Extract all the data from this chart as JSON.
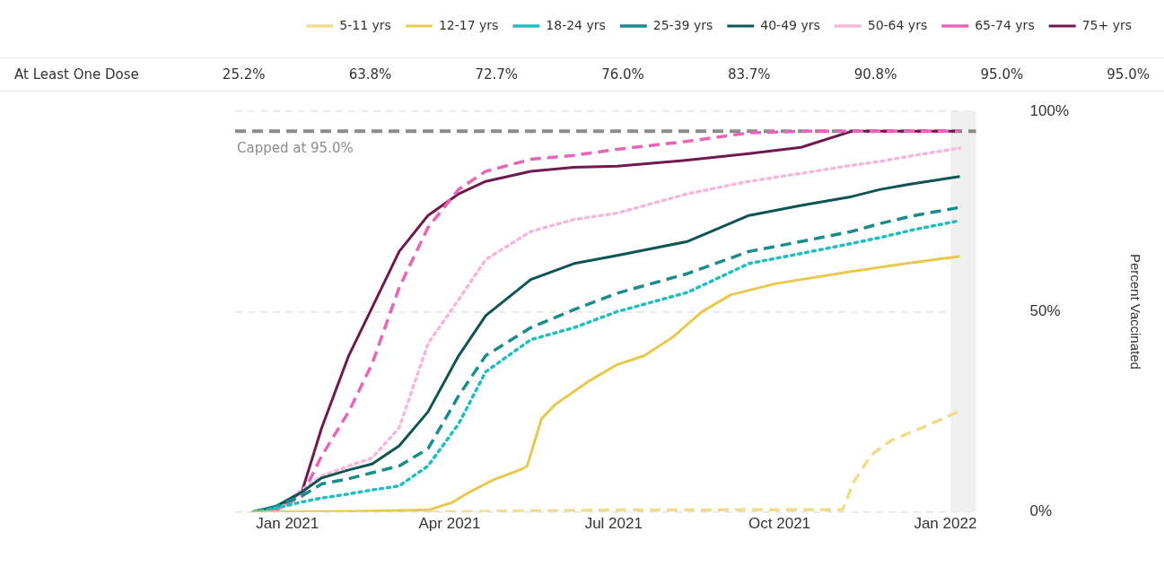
{
  "chart_data": {
    "type": "line",
    "x": [
      "2020-12-13",
      "2020-12-26",
      "2021-01-09",
      "2021-01-20",
      "2021-02-04",
      "2021-02-17",
      "2021-03-04",
      "2021-03-20",
      "2021-04-06",
      "2021-04-21",
      "2021-05-16",
      "2021-06-09",
      "2021-07-03",
      "2021-08-11",
      "2021-09-14",
      "2021-10-13",
      "2021-11-10",
      "2021-11-26",
      "2021-12-15",
      "2022-01-09"
    ],
    "series": [
      {
        "name": "5-11 yrs",
        "color": "#f0dc8c",
        "line_style": "dashed",
        "x": [
          "2021-03-20",
          "2021-07-03",
          "2021-11-05",
          "2021-11-11",
          "2021-11-21",
          "2021-12-02",
          "2021-12-19",
          "2022-01-09"
        ],
        "values": [
          0,
          0.5,
          0.6,
          7.4,
          14.3,
          17.9,
          21,
          25.2
        ]
      },
      {
        "name": "12-17 yrs",
        "color": "#e8c94f",
        "line_style": "solid",
        "x": [
          "2020-12-13",
          "2021-02-07",
          "2021-03-20",
          "2021-04-02",
          "2021-04-13",
          "2021-04-25",
          "2021-05-11",
          "2021-05-14",
          "2021-05-22",
          "2021-05-30",
          "2021-06-17",
          "2021-07-03",
          "2021-07-18",
          "2021-08-03",
          "2021-08-19",
          "2021-09-04",
          "2021-09-29",
          "2021-11-08",
          "2021-12-10",
          "2022-01-09"
        ],
        "values": [
          0,
          0.2,
          0.5,
          2.3,
          5.2,
          8,
          10.7,
          11.5,
          23.3,
          27,
          32.6,
          36.8,
          39,
          43.7,
          50,
          54.2,
          57,
          59.9,
          62,
          63.8
        ]
      },
      {
        "name": "18-24 yrs",
        "color": "#1fbfbf",
        "line_style": "dotted",
        "values": [
          0,
          1,
          2.5,
          3.5,
          4.5,
          5.5,
          6.5,
          11.5,
          22,
          35,
          43,
          46,
          50,
          54.8,
          62,
          64.5,
          67,
          68.5,
          70.5,
          72.7
        ]
      },
      {
        "name": "25-39 yrs",
        "color": "#1a8c8c",
        "line_style": "dashed",
        "values": [
          0,
          1.5,
          4,
          7,
          8.3,
          9.8,
          11.5,
          15.8,
          29,
          39,
          46,
          50.5,
          54.6,
          59.5,
          65,
          67.5,
          70,
          72,
          74,
          76
        ]
      },
      {
        "name": "40-49 yrs",
        "color": "#0e5453",
        "line_style": "solid",
        "values": [
          0,
          1.5,
          5,
          8.5,
          10.5,
          12,
          16.5,
          25,
          39,
          49,
          58,
          62,
          64,
          67.5,
          74,
          76.5,
          78.7,
          80.5,
          82,
          83.7
        ]
      },
      {
        "name": "50-64 yrs",
        "color": "#f5b8dc",
        "line_style": "dotted",
        "values": [
          0,
          1,
          5.5,
          9,
          11.5,
          13.5,
          21,
          42,
          53,
          63,
          70,
          73,
          74.6,
          79.4,
          82.5,
          84.5,
          86.5,
          87.5,
          89,
          90.8
        ]
      },
      {
        "name": "65-74 yrs",
        "color": "#e864b8",
        "line_style": "dashed",
        "values": [
          0,
          0.5,
          4,
          14,
          25,
          37,
          56,
          71,
          80.5,
          85,
          88,
          89,
          90.5,
          92.5,
          94.6,
          95,
          95,
          95,
          95,
          95
        ]
      },
      {
        "name": "75+ yrs",
        "color": "#6e1a4f",
        "line_style": "solid",
        "values": [
          0,
          1,
          5,
          21,
          39,
          51,
          65,
          74,
          79.4,
          82.5,
          85,
          86,
          86.3,
          87.8,
          89.4,
          91,
          95,
          95,
          95,
          95
        ]
      }
    ],
    "ylabel": "Percent Vaccinated",
    "xlim": [
      "2020-12-03",
      "2022-01-18"
    ],
    "xticks": [
      {
        "value": "2021-01-01",
        "label": "Jan 2021"
      },
      {
        "value": "2021-04-01",
        "label": "Apr 2021"
      },
      {
        "value": "2021-07-01",
        "label": "Jul 2021"
      },
      {
        "value": "2021-10-01",
        "label": "Oct 2021"
      },
      {
        "value": "2022-01-01",
        "label": "Jan 2022"
      }
    ],
    "ylim": [
      0,
      100
    ],
    "yticks": [
      {
        "value": 0,
        "label": "0%"
      },
      {
        "value": 50,
        "label": "50%"
      },
      {
        "value": 100,
        "label": "100%"
      }
    ],
    "ref_lines": [
      {
        "axis": "y",
        "value": 95,
        "label": "Capped at 95.0%",
        "color": "#8c8c8c",
        "line_style": "dashed"
      }
    ],
    "bands": [
      {
        "axis": "x",
        "from": "2022-01-04",
        "to": "2022-01-18",
        "color": "#efefef"
      }
    ],
    "annotations": [
      "At Least One Dose",
      "25.2%",
      "63.8%",
      "72.7%",
      "76.0%",
      "83.7%",
      "90.8%",
      "95.0%",
      "95.0%"
    ],
    "grid": "y",
    "legend": "top right",
    "marker": "none"
  }
}
